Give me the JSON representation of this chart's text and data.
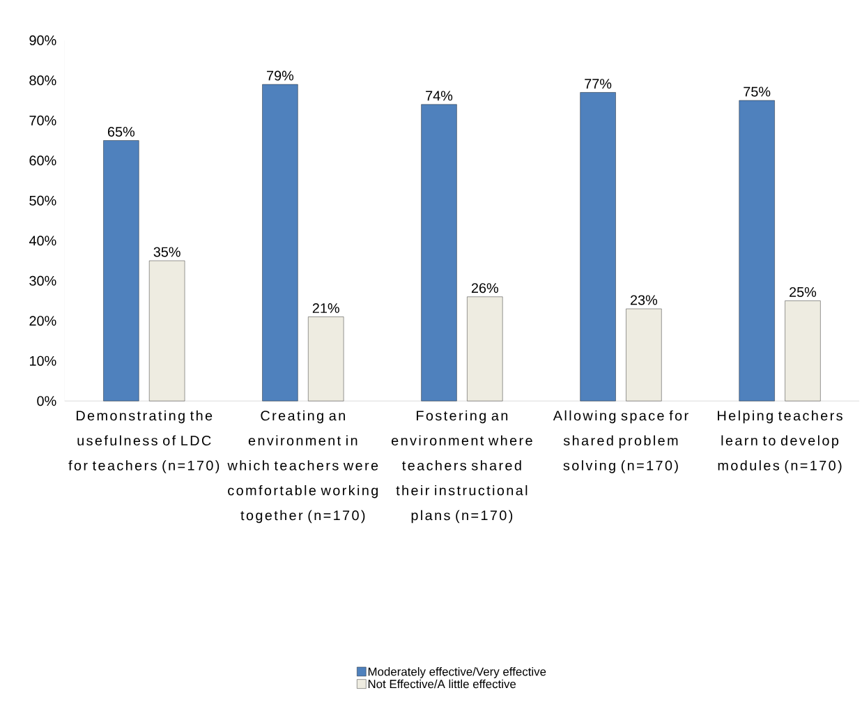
{
  "chart_data": {
    "type": "bar",
    "categories": [
      "Demonstrating the usefulness of LDC for teachers (n=170)",
      "Creating an environment in which teachers were comfortable working together (n=170)",
      "Fostering an environment where teachers shared their instructional plans  (n=170)",
      "Allowing space for shared problem solving (n=170)",
      "Helping teachers learn to develop modules (n=170)"
    ],
    "series": [
      {
        "name": "Moderately effective/Very effective",
        "color": "#4f81bd",
        "values": [
          65,
          79,
          74,
          77,
          75
        ],
        "value_labels": [
          "65%",
          "79%",
          "74%",
          "77%",
          "75%"
        ]
      },
      {
        "name": "Not Effective/A little effective",
        "color": "#eeece1",
        "values": [
          35,
          21,
          26,
          23,
          25
        ],
        "value_labels": [
          "35%",
          "21%",
          "26%",
          "23%",
          "25%"
        ]
      }
    ],
    "ylim": [
      0,
      90
    ],
    "yticks": [
      {
        "value": 0,
        "label": "0%"
      },
      {
        "value": 10,
        "label": "10%"
      },
      {
        "value": 20,
        "label": "20%"
      },
      {
        "value": 30,
        "label": "30%"
      },
      {
        "value": 40,
        "label": "40%"
      },
      {
        "value": 50,
        "label": "50%"
      },
      {
        "value": 60,
        "label": "60%"
      },
      {
        "value": 70,
        "label": "70%"
      },
      {
        "value": 80,
        "label": "80%"
      },
      {
        "value": 90,
        "label": "90%"
      }
    ],
    "legend": "bottom"
  }
}
